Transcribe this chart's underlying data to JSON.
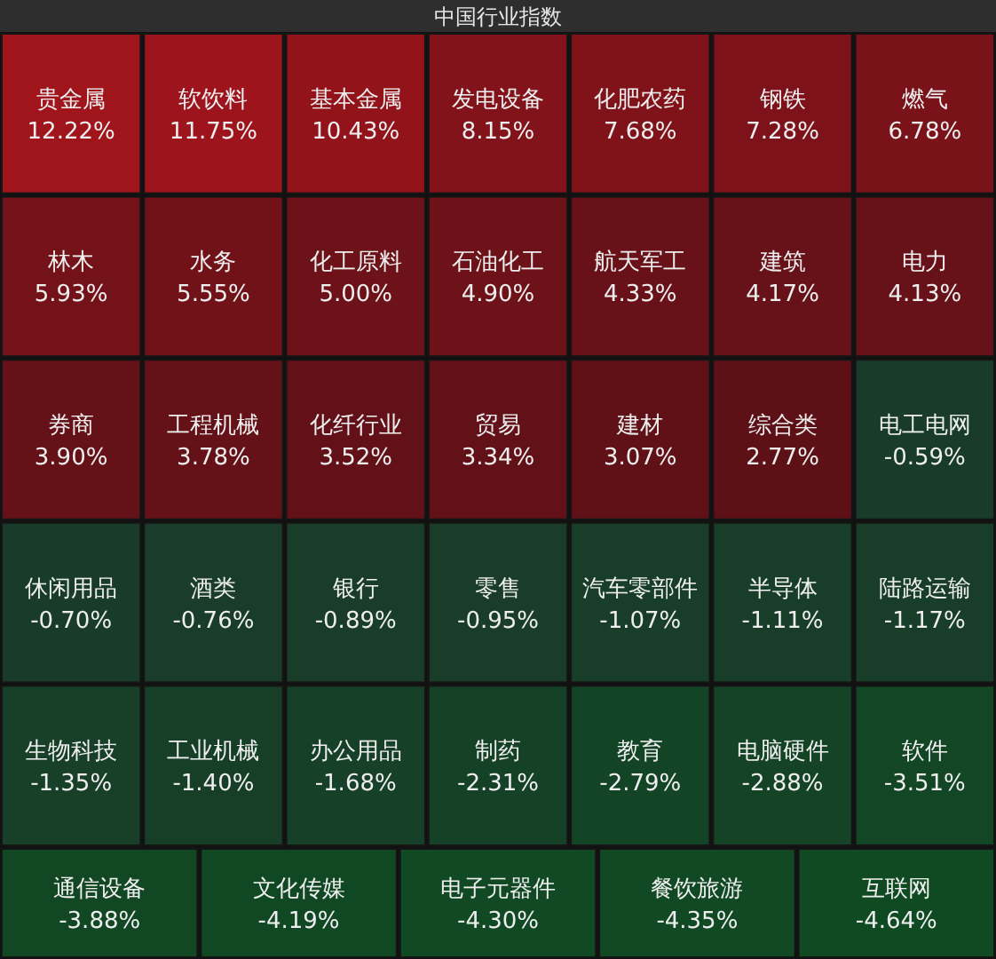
{
  "chart_data": {
    "type": "other",
    "title": "中国行业指数",
    "categories": [
      "贵金属",
      "软饮料",
      "基本金属",
      "发电设备",
      "化肥农药",
      "钢铁",
      "燃气",
      "林木",
      "水务",
      "化工原料",
      "石油化工",
      "航天军工",
      "建筑",
      "电力",
      "券商",
      "工程机械",
      "化纤行业",
      "贸易",
      "建材",
      "综合类",
      "电工电网",
      "休闲用品",
      "酒类",
      "银行",
      "零售",
      "汽车零部件",
      "半导体",
      "陆路运输",
      "生物科技",
      "工业机械",
      "办公用品",
      "制药",
      "教育",
      "电脑硬件",
      "软件",
      "通信设备",
      "文化传媒",
      "电子元器件",
      "餐饮旅游",
      "互联网"
    ],
    "values": [
      12.22,
      11.75,
      10.43,
      8.15,
      7.68,
      7.28,
      6.78,
      5.93,
      5.55,
      5.0,
      4.9,
      4.33,
      4.17,
      4.13,
      3.9,
      3.78,
      3.52,
      3.34,
      3.07,
      2.77,
      -0.59,
      -0.7,
      -0.76,
      -0.89,
      -0.95,
      -1.07,
      -1.11,
      -1.17,
      -1.35,
      -1.4,
      -1.68,
      -2.31,
      -2.79,
      -2.88,
      -3.51,
      -3.88,
      -4.19,
      -4.3,
      -4.35,
      -4.64
    ],
    "value_labels": [
      "12.22%",
      "11.75%",
      "10.43%",
      "8.15%",
      "7.68%",
      "7.28%",
      "6.78%",
      "5.93%",
      "5.55%",
      "5.00%",
      "4.90%",
      "4.33%",
      "4.17%",
      "4.13%",
      "3.90%",
      "3.78%",
      "3.52%",
      "3.34%",
      "3.07%",
      "2.77%",
      "-0.59%",
      "-0.70%",
      "-0.76%",
      "-0.89%",
      "-0.95%",
      "-1.07%",
      "-1.11%",
      "-1.17%",
      "-1.35%",
      "-1.40%",
      "-1.68%",
      "-2.31%",
      "-2.79%",
      "-2.88%",
      "-3.51%",
      "-3.88%",
      "-4.19%",
      "-4.30%",
      "-4.35%",
      "-4.64%"
    ]
  }
}
